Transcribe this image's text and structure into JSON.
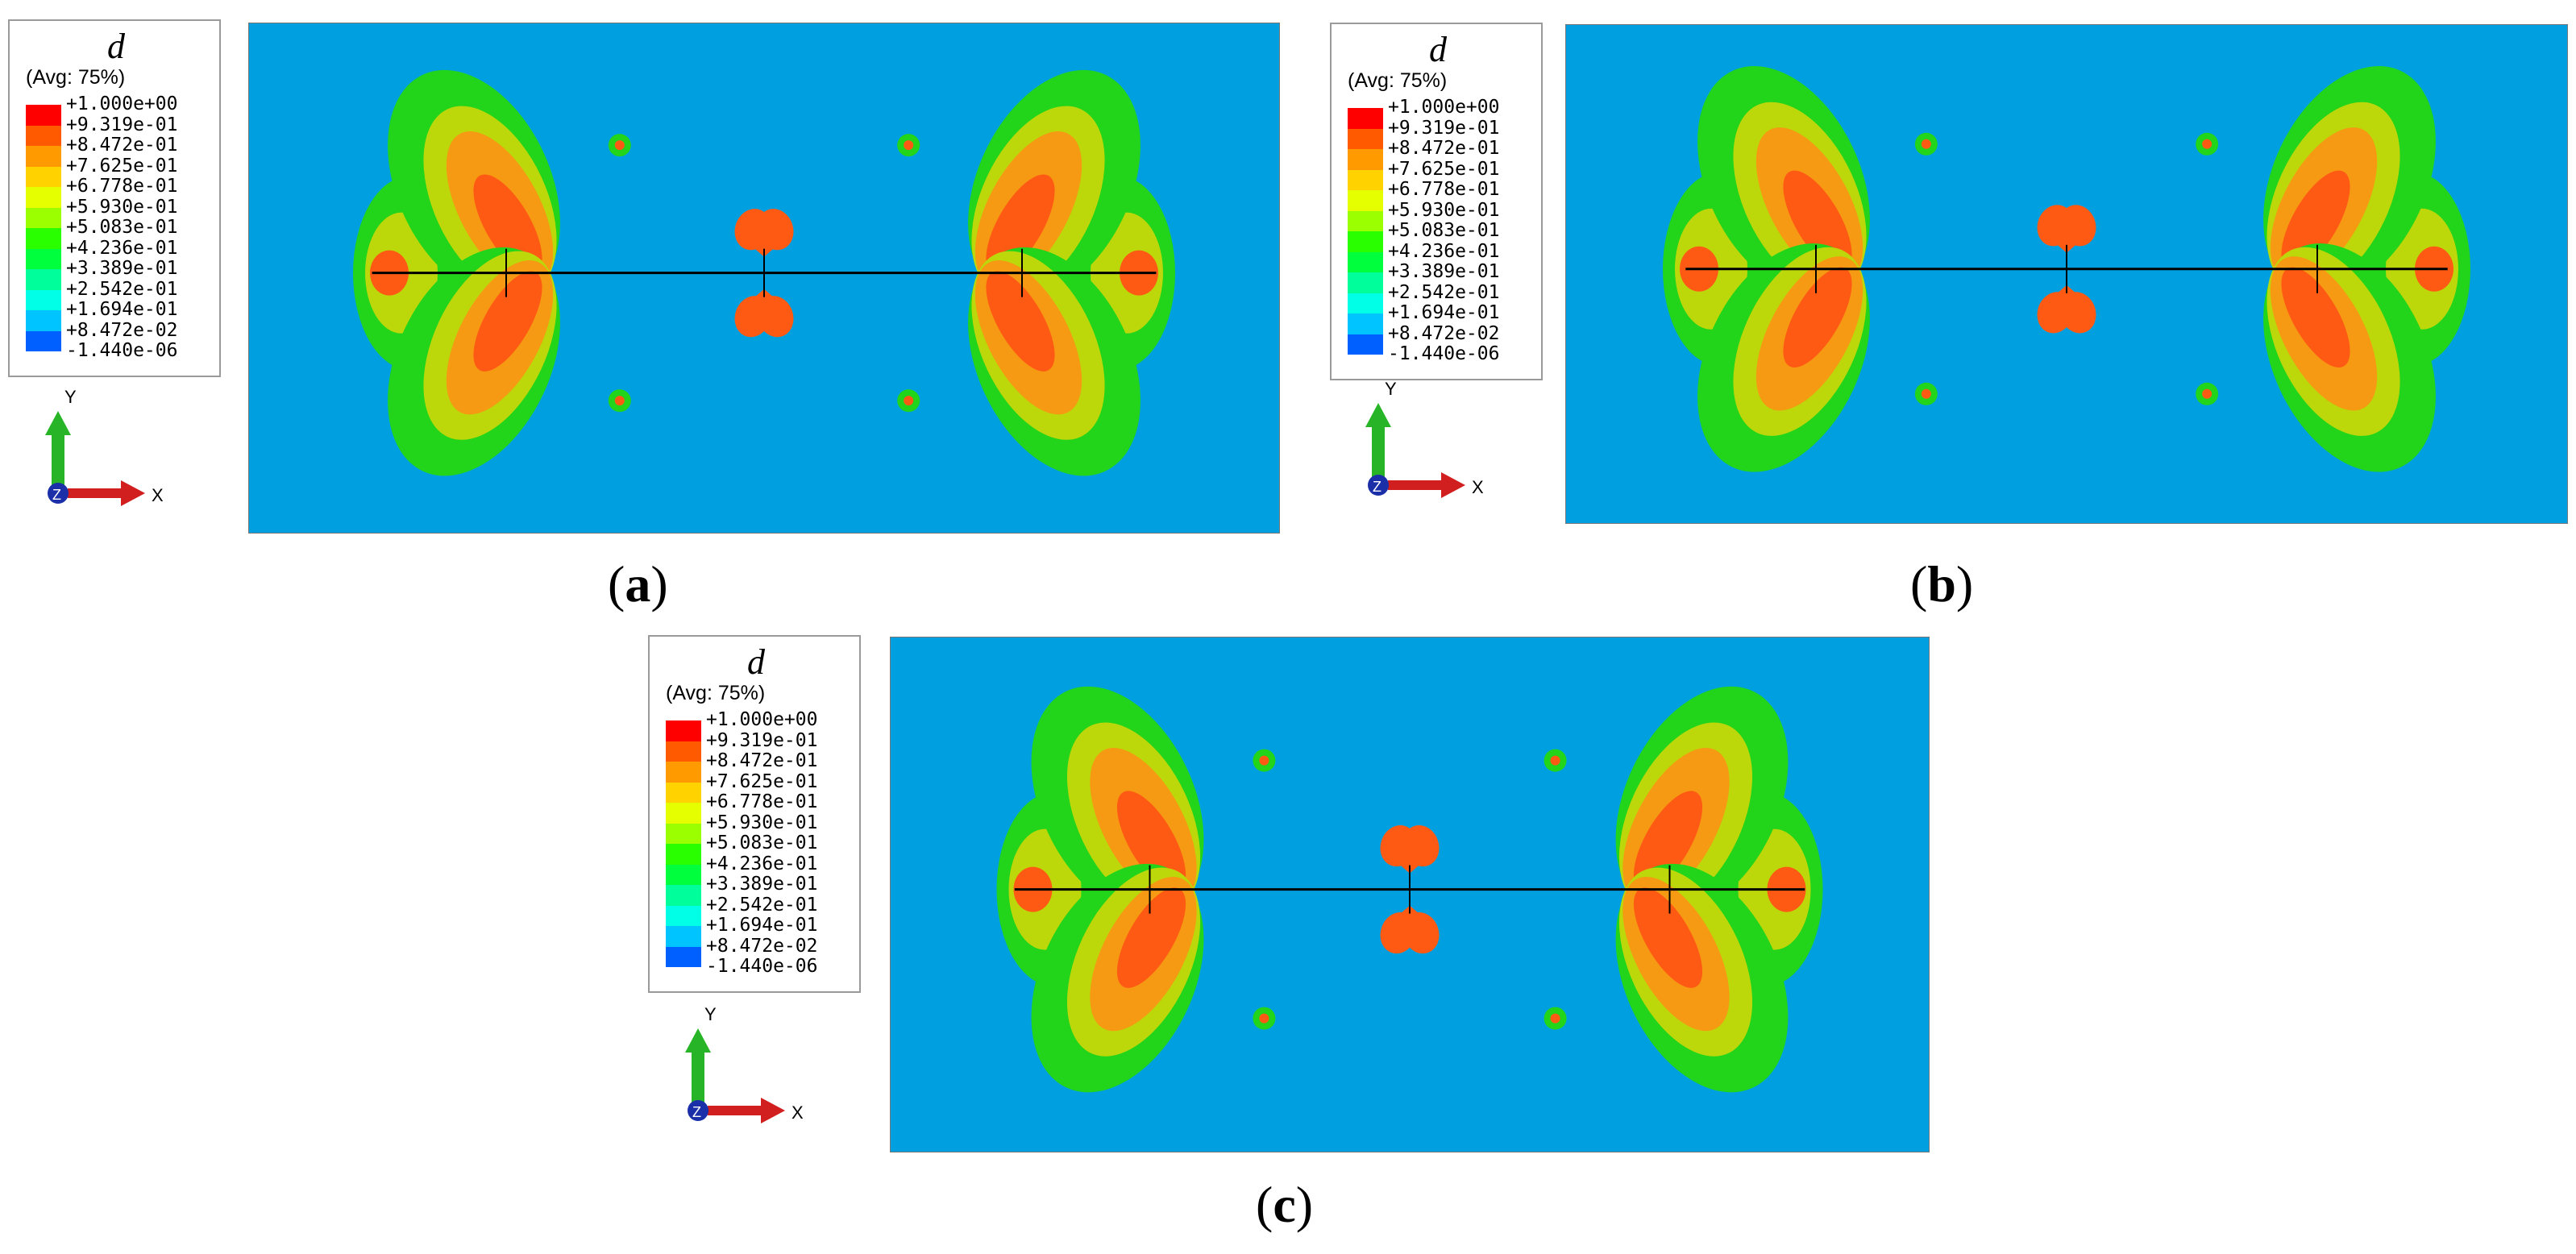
{
  "legend": {
    "variable": "d",
    "averaging": "(Avg: 75%)",
    "levels": [
      "+1.000e+00",
      "+9.319e-01",
      "+8.472e-01",
      "+7.625e-01",
      "+6.778e-01",
      "+5.930e-01",
      "+5.083e-01",
      "+4.236e-01",
      "+3.389e-01",
      "+2.542e-01",
      "+1.694e-01",
      "+8.472e-02",
      "-1.440e-06"
    ],
    "colors": [
      "#ff0000",
      "#ff5a00",
      "#ff9a00",
      "#ffd200",
      "#e6ff00",
      "#9cff00",
      "#2aff00",
      "#00ff3c",
      "#00ff9a",
      "#00ffe6",
      "#00c4ff",
      "#0060ff",
      "#0000ff"
    ]
  },
  "triad": {
    "y_label": "Y",
    "x_label": "X",
    "z_label": "Z"
  },
  "field_colors": {
    "background": "#00a0e0",
    "outer": "#22d41a",
    "mid": "#bcd80a",
    "inner": "#f59a12",
    "core": "#ff5a14",
    "crack": "#000000"
  },
  "panels": [
    {
      "caption_open": "(",
      "caption_letter": "a",
      "caption_close": ")"
    },
    {
      "caption_open": "(",
      "caption_letter": "b",
      "caption_close": ")"
    },
    {
      "caption_open": "(",
      "caption_letter": "c",
      "caption_close": ")"
    }
  ]
}
